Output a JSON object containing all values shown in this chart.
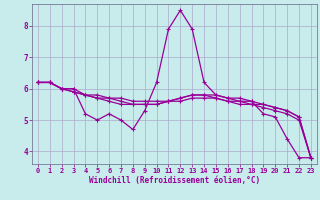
{
  "xlabel": "Windchill (Refroidissement éolien,°C)",
  "bg_color": "#c8ecec",
  "line_color": "#990099",
  "grid_color": "#aaaacc",
  "spine_color": "#666688",
  "xlim": [
    -0.5,
    23.5
  ],
  "ylim": [
    3.6,
    8.7
  ],
  "yticks": [
    4,
    5,
    6,
    7,
    8
  ],
  "xticks": [
    0,
    1,
    2,
    3,
    4,
    5,
    6,
    7,
    8,
    9,
    10,
    11,
    12,
    13,
    14,
    15,
    16,
    17,
    18,
    19,
    20,
    21,
    22,
    23
  ],
  "series": [
    [
      6.2,
      6.2,
      6.0,
      6.0,
      5.2,
      5.0,
      5.2,
      5.0,
      4.7,
      5.3,
      6.2,
      7.9,
      8.5,
      7.9,
      6.2,
      5.8,
      5.7,
      5.7,
      5.6,
      5.2,
      5.1,
      4.4,
      3.8,
      3.8
    ],
    [
      6.2,
      6.2,
      6.0,
      6.0,
      5.8,
      5.7,
      5.7,
      5.6,
      5.5,
      5.5,
      5.5,
      5.6,
      5.7,
      5.8,
      5.8,
      5.8,
      5.7,
      5.6,
      5.6,
      5.5,
      5.4,
      5.3,
      5.1,
      3.8
    ],
    [
      6.2,
      6.2,
      6.0,
      5.9,
      5.8,
      5.7,
      5.6,
      5.5,
      5.5,
      5.5,
      5.5,
      5.6,
      5.7,
      5.8,
      5.8,
      5.7,
      5.6,
      5.5,
      5.5,
      5.4,
      5.3,
      5.2,
      5.0,
      3.8
    ],
    [
      6.2,
      6.2,
      6.0,
      5.9,
      5.8,
      5.8,
      5.7,
      5.7,
      5.6,
      5.6,
      5.6,
      5.6,
      5.6,
      5.7,
      5.7,
      5.7,
      5.6,
      5.6,
      5.5,
      5.5,
      5.4,
      5.3,
      5.1,
      3.8
    ]
  ],
  "marker": "+",
  "markersize": 3.5,
  "linewidth": 0.9,
  "tick_fontsize": 5.0,
  "xlabel_fontsize": 5.5
}
